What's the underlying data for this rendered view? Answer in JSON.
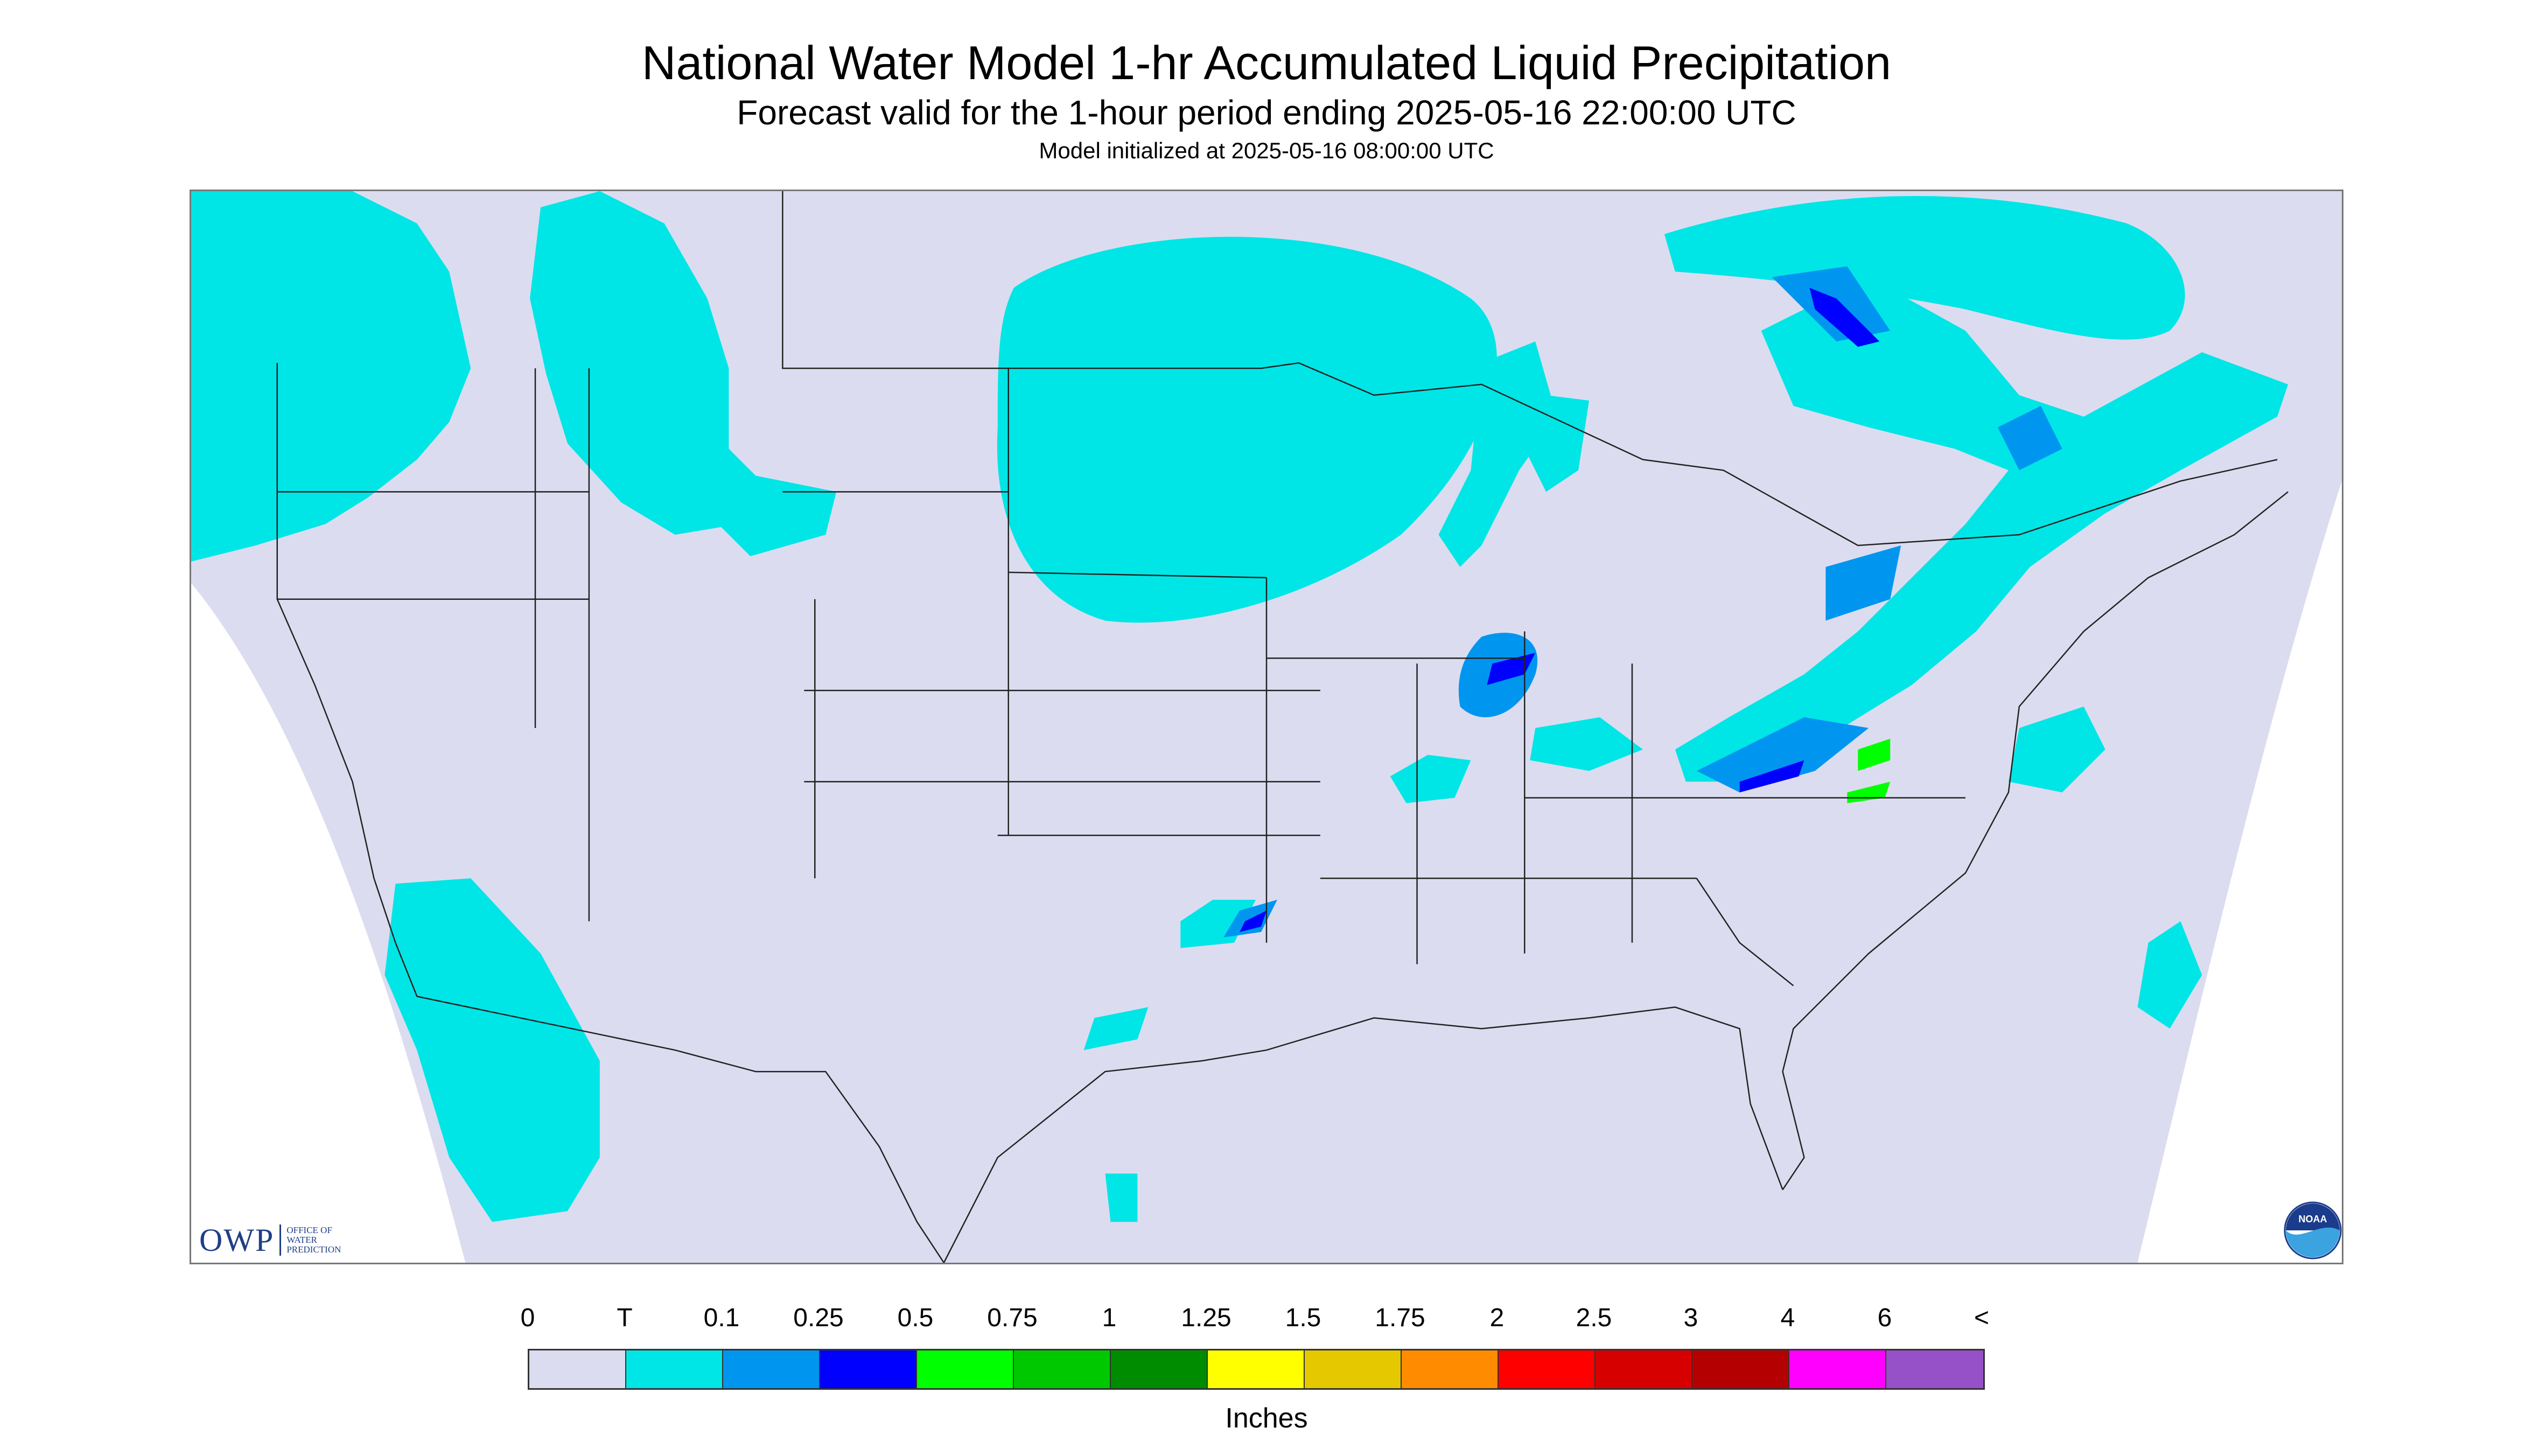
{
  "header": {
    "title": "National Water Model 1-hr Accumulated Liquid Precipitation",
    "subtitle": "Forecast valid for the 1-hour period ending 2025-05-16 22:00:00 UTC",
    "init": "Model initialized at 2025-05-16 08:00:00 UTC"
  },
  "logos": {
    "owp_mark": "OWP",
    "owp_text": "OFFICE OF WATER PREDICTION",
    "noaa_text": "NOAA"
  },
  "legend": {
    "units": "Inches",
    "labels": [
      "0",
      "T",
      "0.1",
      "0.25",
      "0.5",
      "0.75",
      "1",
      "1.25",
      "1.5",
      "1.75",
      "2",
      "2.5",
      "3",
      "4",
      "6",
      "<"
    ],
    "colors": [
      "#dcdcf0",
      "#00e6e6",
      "#0096f0",
      "#0000ff",
      "#00ff00",
      "#00c800",
      "#008c00",
      "#ffff00",
      "#e6c800",
      "#ff8c00",
      "#ff0000",
      "#d70000",
      "#b40000",
      "#ff00ff",
      "#9650c8"
    ]
  },
  "map": {
    "background": "#dcdcf0",
    "outside": "#ffffff",
    "border_color": "#222222"
  }
}
